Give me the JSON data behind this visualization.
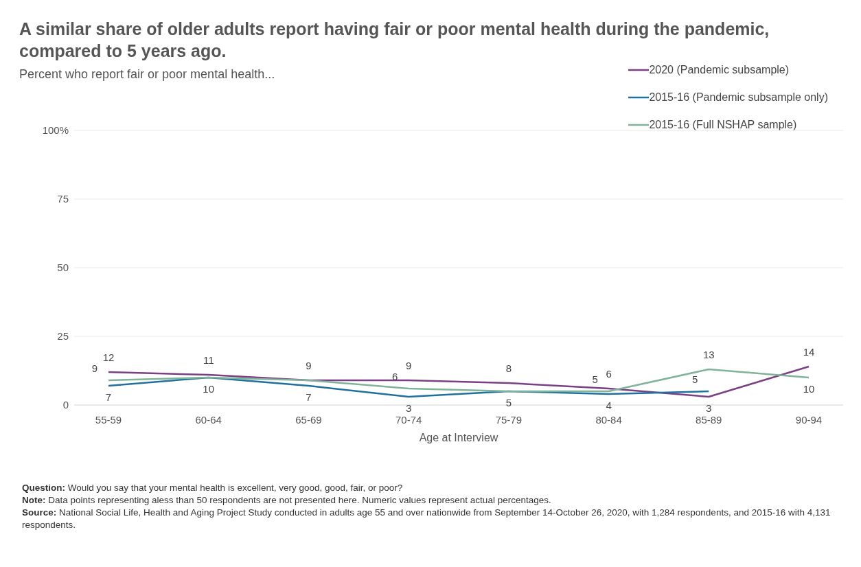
{
  "chart_data": {
    "type": "line",
    "title": "A similar share of older adults report having fair or poor mental health during the pandemic, compared to 5 years ago.",
    "subtitle": "Percent who report fair or poor mental health...",
    "xlabel": "Age at Interview",
    "categories": [
      "55-59",
      "60-64",
      "65-69",
      "70-74",
      "75-79",
      "80-84",
      "85-89",
      "90-94"
    ],
    "series": [
      {
        "name": "2020 (Pandemic subsample)",
        "color": "#7b3f85",
        "values": [
          12,
          11,
          9,
          9,
          8,
          6,
          3,
          14
        ],
        "value_labels": [
          "12",
          "11",
          "9",
          "9",
          "8",
          "6",
          "3",
          "14"
        ]
      },
      {
        "name": "2015-16 (Pandemic subsample only)",
        "color": "#1f6f9f",
        "values": [
          7,
          10,
          7,
          3,
          5,
          4,
          5,
          null
        ],
        "value_labels": [
          "7",
          "10",
          "7",
          "3",
          "5",
          "4",
          "5",
          null
        ]
      },
      {
        "name": "2015-16 (Full NSHAP sample)",
        "color": "#7fb39a",
        "values": [
          9,
          10,
          9,
          6,
          5,
          5,
          13,
          10
        ],
        "value_labels": [
          "9",
          null,
          null,
          "6",
          null,
          "5",
          "13",
          "10"
        ]
      }
    ],
    "ylim": [
      0,
      100
    ],
    "yticks": [
      0,
      25,
      50,
      75,
      {
        "value": 100,
        "label": "100%"
      }
    ],
    "grid": "y",
    "legend": "top right",
    "marker": "none",
    "line_style": "solid",
    "annotations": [
      "Question: Would you say that your mental health is excellent, very good, good, fair, or poor?",
      "Note: Data points representing aless than 50 respondents are not presented here. Numeric values represent actual percentages.",
      "Source: National Social Life, Health and Aging Project Study conducted in adults age 55 and over nationwide from September 14-October 26, 2020, with 1,284 respondents, and 2015-16 with 4,131 respondents."
    ]
  }
}
